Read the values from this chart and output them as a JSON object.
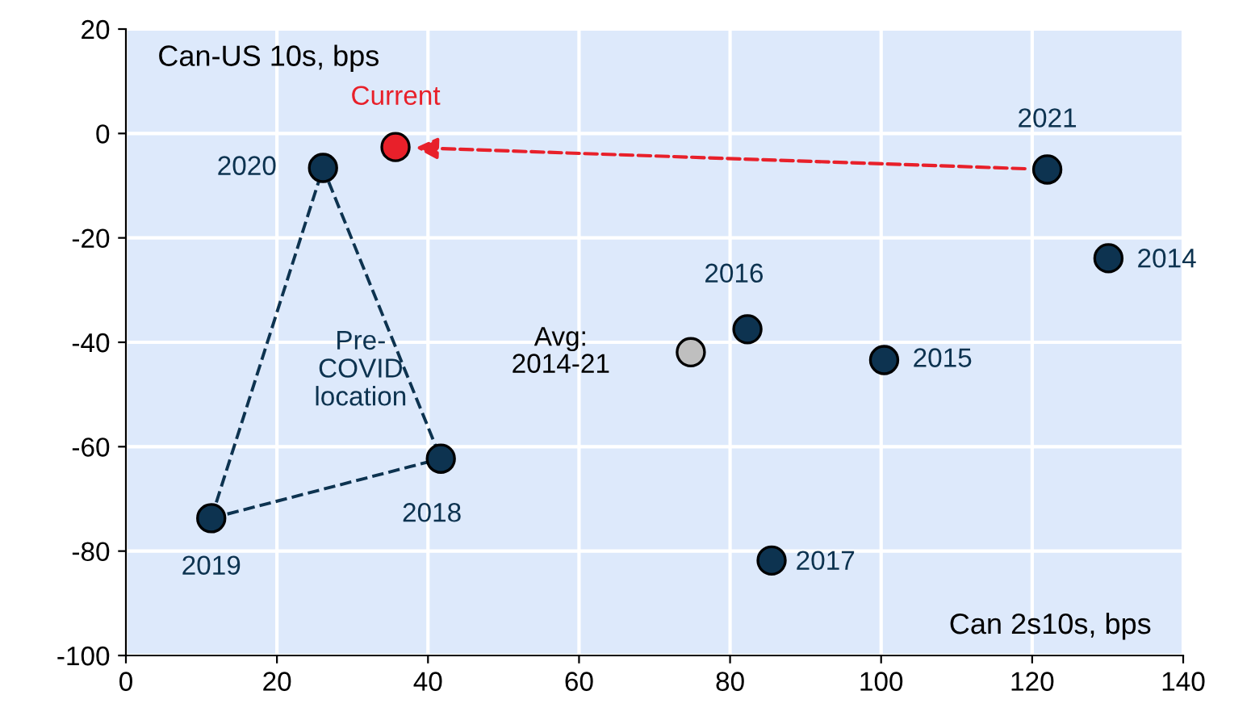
{
  "chart_data": {
    "type": "scatter",
    "xlabel": "Can 2s10s, bps",
    "ylabel": "Can-US 10s, bps",
    "xlim": [
      0,
      140
    ],
    "xticks": [
      0,
      20,
      40,
      60,
      80,
      100,
      120,
      140
    ],
    "ylim": [
      -100,
      20
    ],
    "yticks": [
      -100,
      -80,
      -60,
      -40,
      -20,
      0,
      20
    ],
    "grid": true,
    "series": [
      {
        "type": "line",
        "color": "#0d3350",
        "line_style": "dashed",
        "x": [
          11.3,
          26.1,
          41.7
        ],
        "values": [
          -73.7,
          -6.6,
          -62.3
        ]
      },
      {
        "type": "line",
        "color": "#0d3350",
        "line_style": "dashed",
        "x": [
          11.3,
          41.7
        ],
        "values": [
          -73.7,
          -62.3
        ]
      },
      {
        "color": "#0d3350",
        "marker": "circle",
        "x": [
          130.1,
          100.4,
          82.3,
          85.5,
          41.7,
          11.3,
          26.1,
          122
        ],
        "values": [
          -23.9,
          -43.4,
          -37.5,
          -81.8,
          -62.3,
          -73.7,
          -6.6,
          -6.9
        ]
      },
      {
        "name": "Avg:\n2014-21",
        "marker": "circle",
        "color": "#bfbfbf",
        "x": [
          74.8
        ],
        "values": [
          -41.9
        ]
      },
      {
        "name": "Current",
        "marker": "circle",
        "color": "#e8202a",
        "x": [
          35.7
        ],
        "values": [
          -2.6
        ]
      }
    ],
    "annotations": [
      {
        "text": "2014",
        "x": 130.1,
        "y": -23.9
      },
      {
        "text": "2015",
        "x": 100.4,
        "y": -43.4
      },
      {
        "text": "2016",
        "x": 82.3,
        "y": -37.5
      },
      {
        "text": "2017",
        "x": 85.5,
        "y": -81.8
      },
      {
        "text": "2018",
        "x": 41.7,
        "y": -62.3
      },
      {
        "text": "2019",
        "x": 11.3,
        "y": -73.7
      },
      {
        "text": "2020",
        "x": 26.1,
        "y": -6.6
      },
      {
        "text": "2021",
        "x": 122,
        "y": -6.9
      },
      "Pre-\nCOVID\nlocation"
    ]
  }
}
